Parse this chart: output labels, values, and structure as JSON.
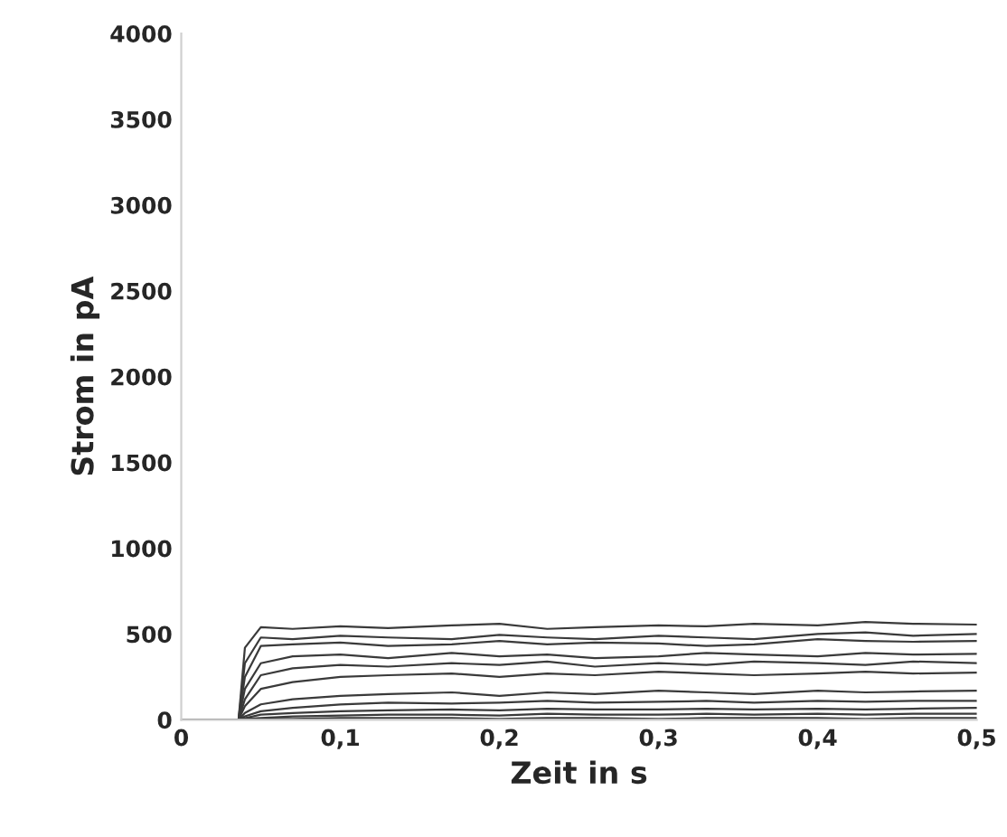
{
  "chart_data": {
    "type": "line",
    "xlabel": "Zeit in s",
    "ylabel": "Strom in pA",
    "x": [
      0,
      0.02,
      0.036,
      0.04,
      0.05,
      0.07,
      0.1,
      0.13,
      0.17,
      0.2,
      0.23,
      0.26,
      0.3,
      0.33,
      0.36,
      0.4,
      0.43,
      0.46,
      0.5
    ],
    "series": [
      {
        "color": "#3a3a3a",
        "values": [
          0,
          0,
          0,
          420,
          540,
          530,
          545,
          535,
          550,
          560,
          530,
          540,
          550,
          545,
          560,
          550,
          570,
          560,
          555
        ]
      },
      {
        "color": "#3a3a3a",
        "values": [
          0,
          0,
          0,
          330,
          480,
          470,
          490,
          480,
          470,
          495,
          480,
          470,
          490,
          480,
          470,
          500,
          510,
          490,
          500
        ]
      },
      {
        "color": "#3a3a3a",
        "values": [
          0,
          0,
          0,
          250,
          430,
          440,
          450,
          430,
          440,
          460,
          440,
          450,
          445,
          430,
          440,
          470,
          460,
          455,
          460
        ]
      },
      {
        "color": "#3a3a3a",
        "values": [
          0,
          0,
          0,
          180,
          330,
          370,
          380,
          360,
          390,
          370,
          380,
          360,
          370,
          390,
          380,
          370,
          390,
          380,
          385
        ]
      },
      {
        "color": "#3a3a3a",
        "values": [
          0,
          0,
          0,
          120,
          260,
          300,
          320,
          310,
          330,
          320,
          340,
          310,
          330,
          320,
          340,
          330,
          320,
          340,
          330
        ]
      },
      {
        "color": "#3a3a3a",
        "values": [
          0,
          0,
          0,
          80,
          180,
          220,
          250,
          260,
          270,
          250,
          270,
          260,
          280,
          270,
          260,
          270,
          280,
          270,
          275
        ]
      },
      {
        "color": "#3a3a3a",
        "values": [
          0,
          0,
          0,
          40,
          90,
          120,
          140,
          150,
          160,
          140,
          160,
          150,
          170,
          160,
          150,
          170,
          160,
          165,
          170
        ]
      },
      {
        "color": "#3a3a3a",
        "values": [
          0,
          0,
          0,
          20,
          50,
          70,
          90,
          100,
          95,
          100,
          110,
          100,
          105,
          110,
          100,
          110,
          105,
          110,
          110
        ]
      },
      {
        "color": "#3a3a3a",
        "values": [
          0,
          0,
          0,
          10,
          30,
          40,
          50,
          55,
          60,
          55,
          65,
          60,
          60,
          65,
          60,
          65,
          60,
          65,
          70
        ]
      },
      {
        "color": "#3a3a3a",
        "values": [
          0,
          0,
          0,
          5,
          10,
          20,
          25,
          30,
          30,
          25,
          35,
          30,
          30,
          35,
          30,
          35,
          30,
          35,
          35
        ]
      },
      {
        "color": "#3a3a3a",
        "values": [
          0,
          0,
          0,
          0,
          5,
          5,
          10,
          10,
          10,
          5,
          10,
          10,
          5,
          10,
          10,
          10,
          5,
          10,
          10
        ]
      }
    ],
    "xlim": [
      0,
      0.5
    ],
    "ylim": [
      0,
      4000
    ],
    "xticks": [
      {
        "value": 0,
        "label": "0"
      },
      {
        "value": 0.1,
        "label": "0,1"
      },
      {
        "value": 0.2,
        "label": "0,2"
      },
      {
        "value": 0.3,
        "label": "0,3"
      },
      {
        "value": 0.4,
        "label": "0,4"
      },
      {
        "value": 0.5,
        "label": "0,5"
      }
    ],
    "yticks": [
      0,
      500,
      1000,
      1500,
      2000,
      2500,
      3000,
      3500,
      4000
    ],
    "grid": false,
    "legend": false,
    "marker": "none",
    "line_style": "solid"
  }
}
